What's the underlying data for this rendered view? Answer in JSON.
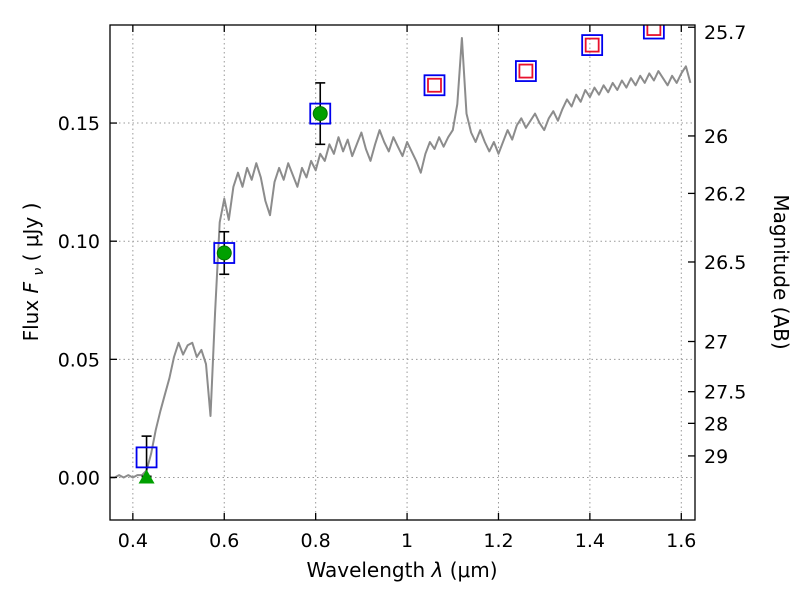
{
  "figure": {
    "background": "#ffffff"
  },
  "chart_data": {
    "type": "line+scatter",
    "title": "",
    "xlabel": {
      "prefix": "Wavelength ",
      "symbol": "λ",
      "suffix": " (μm)"
    },
    "ylabel_left": {
      "prefix": "Flux ",
      "symbol": "F",
      "sub": "ν",
      "suffix": " ( μJy )"
    },
    "ylabel_right": "Magnitude (AB)",
    "xlim": [
      0.35,
      1.63
    ],
    "ylim": [
      -0.018,
      0.1915
    ],
    "grid": true,
    "x_ticks": [
      0.4,
      0.6,
      0.8,
      1.0,
      1.2,
      1.4,
      1.6
    ],
    "x_tick_labels": [
      "0.4",
      "0.6",
      "0.8",
      "1",
      "1.2",
      "1.4",
      "1.6"
    ],
    "y_ticks_left": [
      0.0,
      0.05,
      0.1,
      0.15
    ],
    "y_tick_labels_left": [
      "0.00",
      "0.05",
      "0.10",
      "0.15"
    ],
    "y_ticks_right_mag": [
      25.7,
      26,
      26.2,
      26.5,
      27,
      27.5,
      28,
      29
    ],
    "y_tick_labels_right": [
      "25.7",
      "26",
      "26.2",
      "26.5",
      "27",
      "27.5",
      "28",
      "29"
    ],
    "ab_zero_point": 23.9,
    "colors": {
      "spectrum": "#8c8c8c",
      "model_square": "#0000ee",
      "ir_square": "#e8112d",
      "observed_circle": "#00a000",
      "errorbar": "#000000",
      "upper_limit": "#00a000",
      "grid": "#999999",
      "frame": "#000000"
    },
    "spectrum": {
      "x_start": 0.35,
      "x_step": 0.01,
      "y": [
        0.0,
        0.0,
        0.001,
        0.0,
        0.001,
        0.0,
        0.001,
        0.001,
        0.003,
        0.01,
        0.02,
        0.028,
        0.035,
        0.042,
        0.051,
        0.057,
        0.052,
        0.056,
        0.057,
        0.051,
        0.054,
        0.048,
        0.026,
        0.07,
        0.108,
        0.118,
        0.109,
        0.123,
        0.129,
        0.123,
        0.131,
        0.126,
        0.133,
        0.127,
        0.117,
        0.111,
        0.125,
        0.131,
        0.126,
        0.133,
        0.128,
        0.123,
        0.131,
        0.127,
        0.134,
        0.13,
        0.137,
        0.134,
        0.141,
        0.137,
        0.144,
        0.138,
        0.143,
        0.136,
        0.141,
        0.146,
        0.139,
        0.134,
        0.141,
        0.147,
        0.142,
        0.138,
        0.144,
        0.14,
        0.136,
        0.142,
        0.138,
        0.134,
        0.129,
        0.137,
        0.142,
        0.139,
        0.144,
        0.14,
        0.144,
        0.147,
        0.158,
        0.186,
        0.154,
        0.146,
        0.142,
        0.147,
        0.142,
        0.138,
        0.142,
        0.137,
        0.142,
        0.147,
        0.143,
        0.149,
        0.152,
        0.148,
        0.151,
        0.154,
        0.15,
        0.147,
        0.152,
        0.155,
        0.151,
        0.156,
        0.16,
        0.157,
        0.162,
        0.159,
        0.164,
        0.161,
        0.165,
        0.162,
        0.166,
        0.163,
        0.167,
        0.164,
        0.168,
        0.165,
        0.169,
        0.166,
        0.17,
        0.167,
        0.171,
        0.168,
        0.172,
        0.169,
        0.166,
        0.17,
        0.167,
        0.171,
        0.174,
        0.167
      ]
    },
    "photometry": {
      "blue_squares": [
        [
          0.43,
          0.0085
        ],
        [
          0.6,
          0.095
        ],
        [
          0.81,
          0.154
        ],
        [
          1.06,
          0.166
        ],
        [
          1.26,
          0.172
        ],
        [
          1.405,
          0.183
        ],
        [
          1.54,
          0.19
        ]
      ],
      "red_squares": [
        [
          1.06,
          0.166
        ],
        [
          1.26,
          0.172
        ],
        [
          1.405,
          0.183
        ],
        [
          1.54,
          0.19
        ]
      ],
      "green_circles": {
        "points": [
          [
            0.6,
            0.095
          ],
          [
            0.81,
            0.154
          ]
        ],
        "yerr": [
          0.009,
          0.013
        ]
      },
      "blue_point_errorbar": {
        "x": 0.43,
        "y": 0.009,
        "yerr": 0.0085
      },
      "upper_limit_triangle": [
        0.43,
        0.0
      ]
    }
  }
}
